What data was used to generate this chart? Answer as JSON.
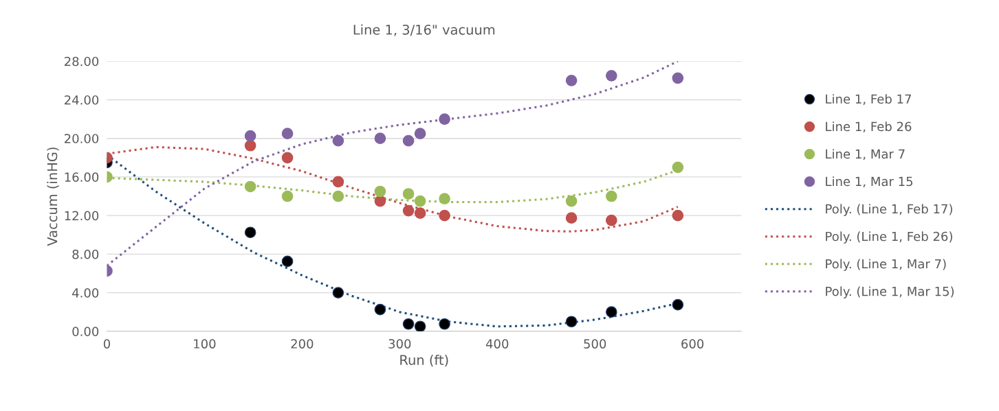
{
  "chart_data": {
    "type": "scatter",
    "title": "Line 1, 3/16\" vacuum",
    "xlabel": "Run (ft)",
    "ylabel": "Vaccum (inHG)",
    "x": [
      0,
      147,
      185,
      237,
      280,
      309,
      321,
      346,
      476,
      517,
      585
    ],
    "xlim": [
      0,
      650
    ],
    "xticks": [
      0,
      100,
      200,
      300,
      400,
      500,
      600
    ],
    "ylim": [
      0,
      28
    ],
    "yticks": [
      {
        "value": 0,
        "label": "0.00"
      },
      {
        "value": 4,
        "label": "4.00"
      },
      {
        "value": 8,
        "label": "8.00"
      },
      {
        "value": 12,
        "label": "12.00"
      },
      {
        "value": 16,
        "label": "16.00"
      },
      {
        "value": 20,
        "label": "20.00"
      },
      {
        "value": 24,
        "label": "24.00"
      },
      {
        "value": 28,
        "label": "28.00"
      }
    ],
    "grid": "y",
    "legend": "right",
    "marker": "circle",
    "series": [
      {
        "name": "Line 1, Feb 17",
        "color": "#000000",
        "values": [
          17.5,
          10.25,
          7.25,
          4.0,
          2.25,
          0.75,
          0.5,
          0.75,
          1.0,
          2.0,
          2.75
        ]
      },
      {
        "name": "Line 1, Feb 26",
        "color": "#c0504d",
        "values": [
          18,
          19.25,
          18,
          15.5,
          13.5,
          12.5,
          12.25,
          12,
          11.75,
          11.5,
          12
        ]
      },
      {
        "name": "Line 1, Mar 7",
        "color": "#9bbb59",
        "values": [
          16,
          15,
          14,
          14,
          14.5,
          14.25,
          13.5,
          13.75,
          13.5,
          14,
          17
        ]
      },
      {
        "name": "Line 1, Mar 15",
        "color": "#8064a2",
        "values": [
          6.25,
          20.25,
          20.5,
          19.75,
          20,
          19.75,
          20.5,
          22,
          26,
          26.5,
          26.25
        ]
      },
      {
        "name": "Poly. (Line 1, Feb 17)",
        "type": "line",
        "line_style": "dotted",
        "marker": "none",
        "color": "#1f4e79",
        "x": [
          0,
          50,
          100,
          150,
          200,
          250,
          300,
          350,
          400,
          450,
          500,
          550,
          585
        ],
        "values": [
          18.3,
          14.5,
          11.2,
          8.2,
          5.8,
          3.7,
          2.0,
          1.0,
          0.5,
          0.6,
          1.2,
          2.1,
          2.9
        ]
      },
      {
        "name": "Poly. (Line 1, Feb 26)",
        "type": "line",
        "line_style": "dotted",
        "marker": "none",
        "color": "#c0504d",
        "x": [
          0,
          50,
          100,
          150,
          200,
          250,
          300,
          350,
          400,
          450,
          475,
          500,
          550,
          585
        ],
        "values": [
          18.4,
          19.1,
          18.9,
          17.9,
          16.6,
          14.9,
          13.3,
          11.9,
          10.9,
          10.4,
          10.35,
          10.5,
          11.4,
          12.9
        ]
      },
      {
        "name": "Poly. (Line 1, Mar 7)",
        "type": "line",
        "line_style": "dotted",
        "marker": "none",
        "color": "#9bbb59",
        "x": [
          0,
          100,
          150,
          200,
          250,
          300,
          350,
          400,
          450,
          500,
          550,
          585
        ],
        "values": [
          15.9,
          15.5,
          15.1,
          14.6,
          14.0,
          13.6,
          13.4,
          13.4,
          13.7,
          14.4,
          15.5,
          16.7
        ]
      },
      {
        "name": "Poly. (Line 1, Mar 15)",
        "type": "line",
        "line_style": "dotted",
        "marker": "none",
        "color": "#8064a2",
        "x": [
          0,
          50,
          100,
          150,
          200,
          250,
          300,
          350,
          400,
          450,
          500,
          550,
          585
        ],
        "values": [
          6.8,
          10.8,
          14.8,
          17.6,
          19.4,
          20.6,
          21.4,
          22.0,
          22.6,
          23.4,
          24.6,
          26.3,
          28.0
        ]
      }
    ]
  }
}
